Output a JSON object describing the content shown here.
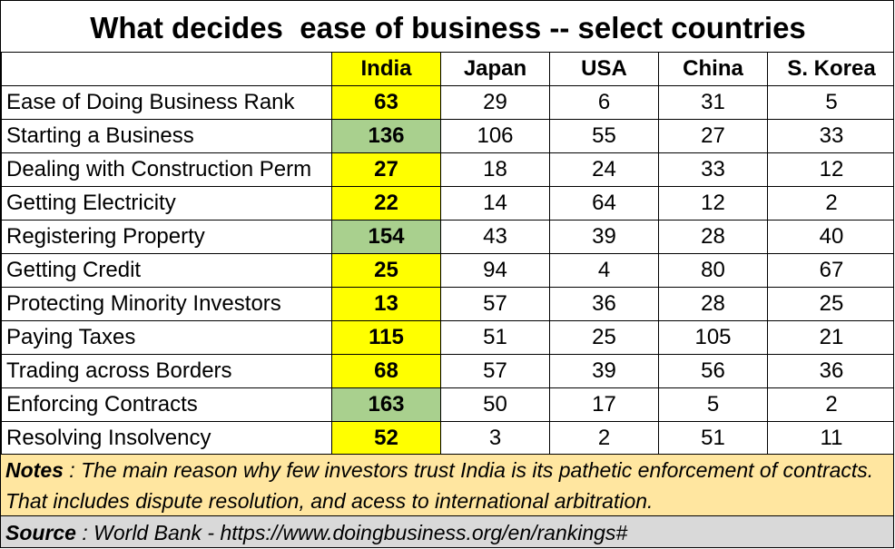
{
  "title": "What decides  ease of business -- select countries",
  "colors": {
    "india_yellow": "#ffff00",
    "india_green": "#a9d08e",
    "notes_bg": "#ffe6a0",
    "source_bg": "#d9d9d9"
  },
  "chart_data": {
    "type": "table",
    "columns": [
      "India",
      "Japan",
      "USA",
      "China",
      "S. Korea"
    ],
    "rows": [
      {
        "label": "Ease of Doing Business Rank",
        "values": [
          63,
          29,
          6,
          31,
          5
        ],
        "india_highlight": "yellow"
      },
      {
        "label": "Starting a Business",
        "values": [
          136,
          106,
          55,
          27,
          33
        ],
        "india_highlight": "green"
      },
      {
        "label": "Dealing with Construction Perm",
        "values": [
          27,
          18,
          24,
          33,
          12
        ],
        "india_highlight": "yellow"
      },
      {
        "label": "Getting Electricity",
        "values": [
          22,
          14,
          64,
          12,
          2
        ],
        "india_highlight": "yellow"
      },
      {
        "label": "Registering Property",
        "values": [
          154,
          43,
          39,
          28,
          40
        ],
        "india_highlight": "green"
      },
      {
        "label": "Getting Credit",
        "values": [
          25,
          94,
          4,
          80,
          67
        ],
        "india_highlight": "yellow"
      },
      {
        "label": "Protecting Minority Investors",
        "values": [
          13,
          57,
          36,
          28,
          25
        ],
        "india_highlight": "yellow"
      },
      {
        "label": "Paying Taxes",
        "values": [
          115,
          51,
          25,
          105,
          21
        ],
        "india_highlight": "yellow"
      },
      {
        "label": "Trading across Borders",
        "values": [
          68,
          57,
          39,
          56,
          36
        ],
        "india_highlight": "yellow"
      },
      {
        "label": "Enforcing Contracts",
        "values": [
          163,
          50,
          17,
          5,
          2
        ],
        "india_highlight": "green"
      },
      {
        "label": "Resolving Insolvency",
        "values": [
          52,
          3,
          2,
          51,
          11
        ],
        "india_highlight": "yellow"
      }
    ]
  },
  "notes": {
    "lead": "Notes",
    "text": " : The main reason why few investors trust India is its pathetic enforcement of contracts.  That includes dispute resolution, and acess to international arbitration."
  },
  "source": {
    "lead": "Source",
    "text": " : World Bank - https://www.doingbusiness.org/en/rankings#"
  }
}
